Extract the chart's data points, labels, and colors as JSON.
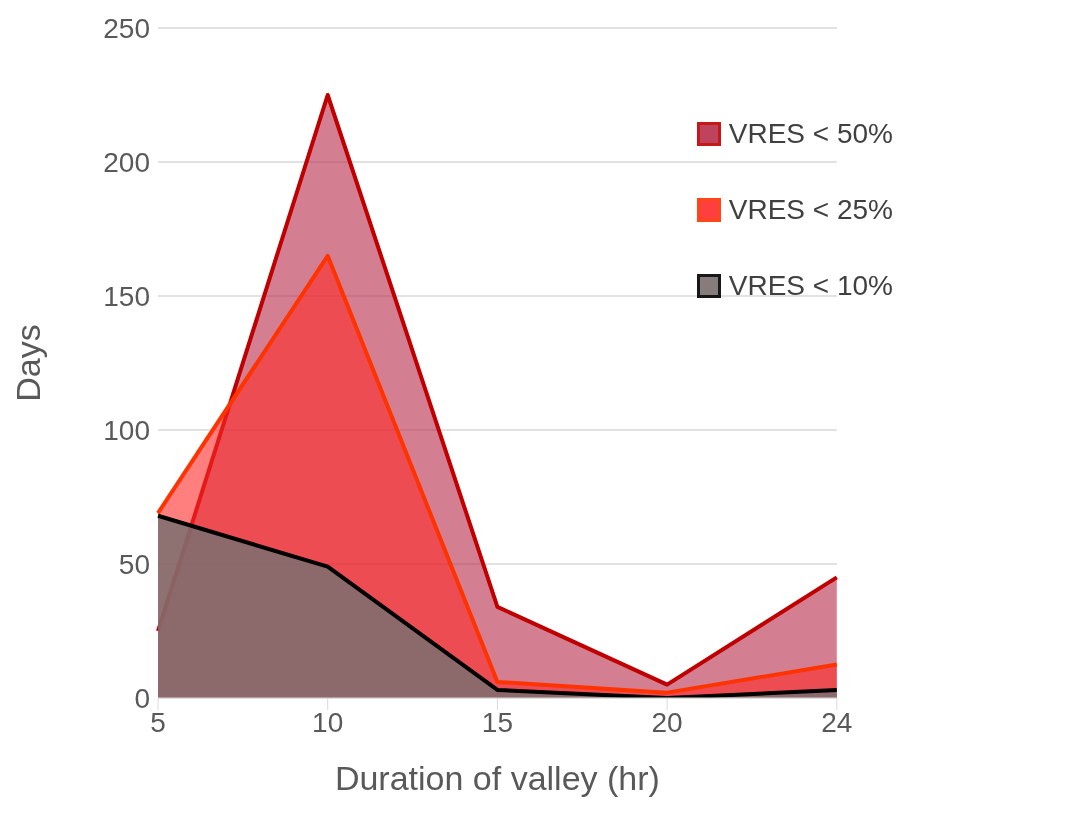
{
  "chart_data": {
    "type": "area",
    "xlabel": "Duration of valley (hr)",
    "ylabel": "Days",
    "categories": [
      "5",
      "10",
      "15",
      "20",
      "24"
    ],
    "series": [
      {
        "name": "VRES < 50%",
        "color": "#c00000",
        "values": [
          25,
          225,
          34,
          5,
          45
        ]
      },
      {
        "name": "VRES < 25%",
        "color": "#ff3300",
        "values": [
          69,
          165,
          6,
          2,
          12.5
        ]
      },
      {
        "name": "VRES < 10%",
        "color": "#000000",
        "values": [
          68,
          49,
          3,
          0,
          3
        ]
      }
    ],
    "ylim": [
      0,
      250
    ],
    "yticks": [
      0,
      50,
      100,
      150,
      200,
      250
    ],
    "grid": "y",
    "legend": "top right",
    "marker": "none",
    "line_style": "solid"
  }
}
